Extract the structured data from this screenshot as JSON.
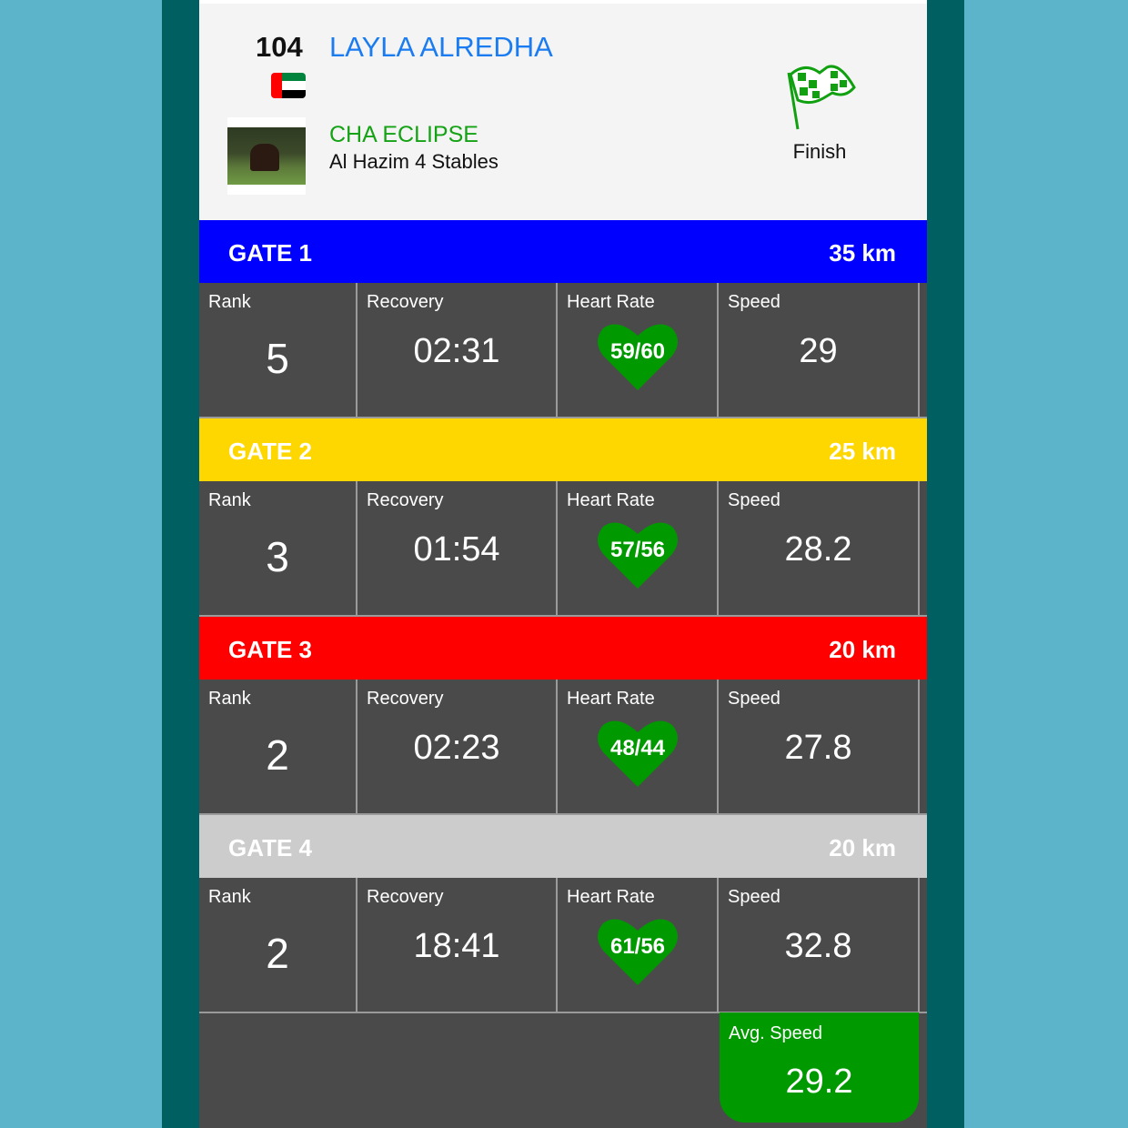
{
  "header": {
    "number": "104",
    "rider": "LAYLA ALREDHA",
    "country_flag": "uae-flag",
    "horse": "CHA ECLIPSE",
    "stable": "Al Hazim 4 Stables",
    "status_icon": "checkered-flag-icon",
    "status": "Finish"
  },
  "labels": {
    "rank": "Rank",
    "recovery": "Recovery",
    "heart_rate": "Heart Rate",
    "speed": "Speed"
  },
  "gates": [
    {
      "name": "GATE 1",
      "distance": "35 km",
      "color": "#0000ff",
      "rank": "5",
      "recovery": "02:31",
      "heart_rate": "59/60",
      "speed": "29"
    },
    {
      "name": "GATE 2",
      "distance": "25 km",
      "color": "#ffd700",
      "rank": "3",
      "recovery": "01:54",
      "heart_rate": "57/56",
      "speed": "28.2"
    },
    {
      "name": "GATE 3",
      "distance": "20 km",
      "color": "#ff0000",
      "rank": "2",
      "recovery": "02:23",
      "heart_rate": "48/44",
      "speed": "27.8"
    },
    {
      "name": "GATE 4",
      "distance": "20 km",
      "color": "#cccccc",
      "rank": "2",
      "recovery": "18:41",
      "heart_rate": "61/56",
      "speed": "32.8"
    }
  ],
  "summary": {
    "avg_speed_label": "Avg. Speed",
    "avg_speed": "29.2"
  },
  "colors": {
    "heart": "#009a00",
    "avg_box": "#009a00",
    "rider": "#1a7cf0",
    "horse": "#15a215"
  }
}
